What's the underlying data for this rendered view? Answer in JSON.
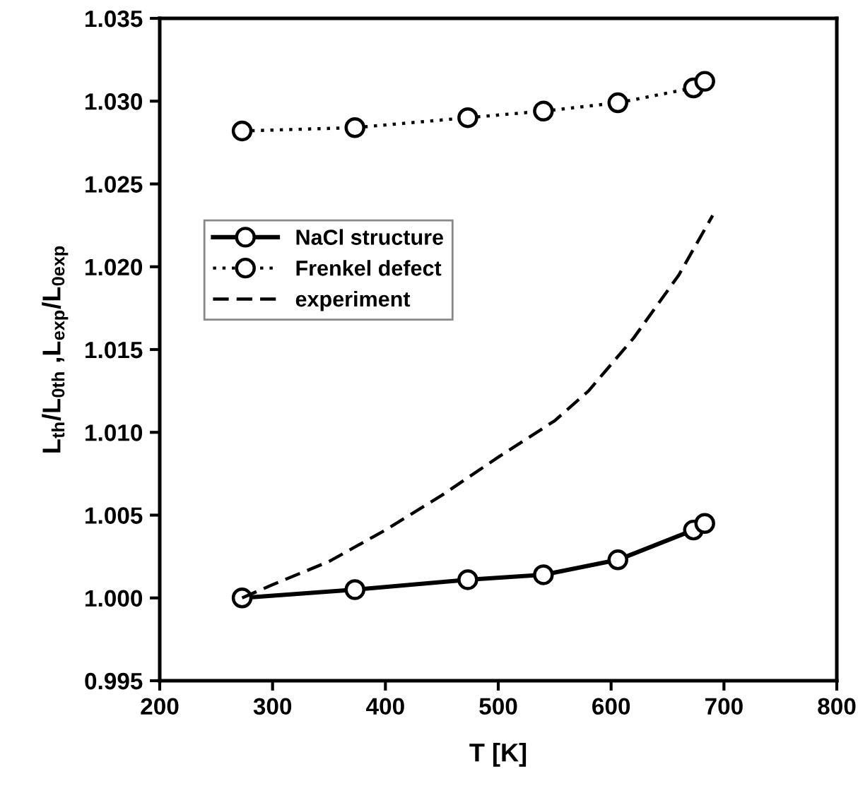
{
  "chart_data": {
    "type": "line",
    "xlabel": "T [K]",
    "ylabel": "L$_{th}$/L$_{0th}$ ,L$_{exp}$/L$_{0exp}$",
    "series": [
      {
        "name": "NaCl structure",
        "color": "#000000",
        "marker": "circle",
        "line_style": "solid",
        "x": [
          273,
          373,
          473,
          540,
          606,
          673,
          683
        ],
        "values": [
          1.0,
          1.0005,
          1.0011,
          1.0014,
          1.0023,
          1.0041,
          1.0045
        ]
      },
      {
        "name": "Frenkel defect",
        "color": "#000000",
        "marker": "circle",
        "line_style": "dotted",
        "x": [
          273,
          373,
          473,
          540,
          606,
          673,
          683
        ],
        "values": [
          1.0282,
          1.0284,
          1.029,
          1.0294,
          1.0299,
          1.0308,
          1.0312
        ]
      },
      {
        "name": "experiment",
        "color": "#000000",
        "marker": "none",
        "line_style": "dashed",
        "x": [
          273,
          300,
          350,
          400,
          450,
          500,
          550,
          580,
          620,
          660,
          690
        ],
        "values": [
          1.0,
          1.0008,
          1.0022,
          1.0041,
          1.0062,
          1.0085,
          1.0107,
          1.0125,
          1.0157,
          1.0195,
          1.0231
        ]
      }
    ],
    "xlim": [
      200,
      800
    ],
    "xticks": [
      200,
      300,
      400,
      500,
      600,
      700,
      800
    ],
    "ylim": [
      0.995,
      1.035
    ],
    "yticks": [
      {
        "value": 0.995,
        "label": "0.995"
      },
      {
        "value": 1.0,
        "label": "1.000"
      },
      {
        "value": 1.005,
        "label": "1.005"
      },
      {
        "value": 1.01,
        "label": "1.010"
      },
      {
        "value": 1.015,
        "label": "1.015"
      },
      {
        "value": 1.02,
        "label": "1.020"
      },
      {
        "value": 1.025,
        "label": "1.025"
      },
      {
        "value": 1.03,
        "label": "1.030"
      },
      {
        "value": 1.035,
        "label": "1.035"
      }
    ],
    "grid": false,
    "legend": "center left"
  }
}
